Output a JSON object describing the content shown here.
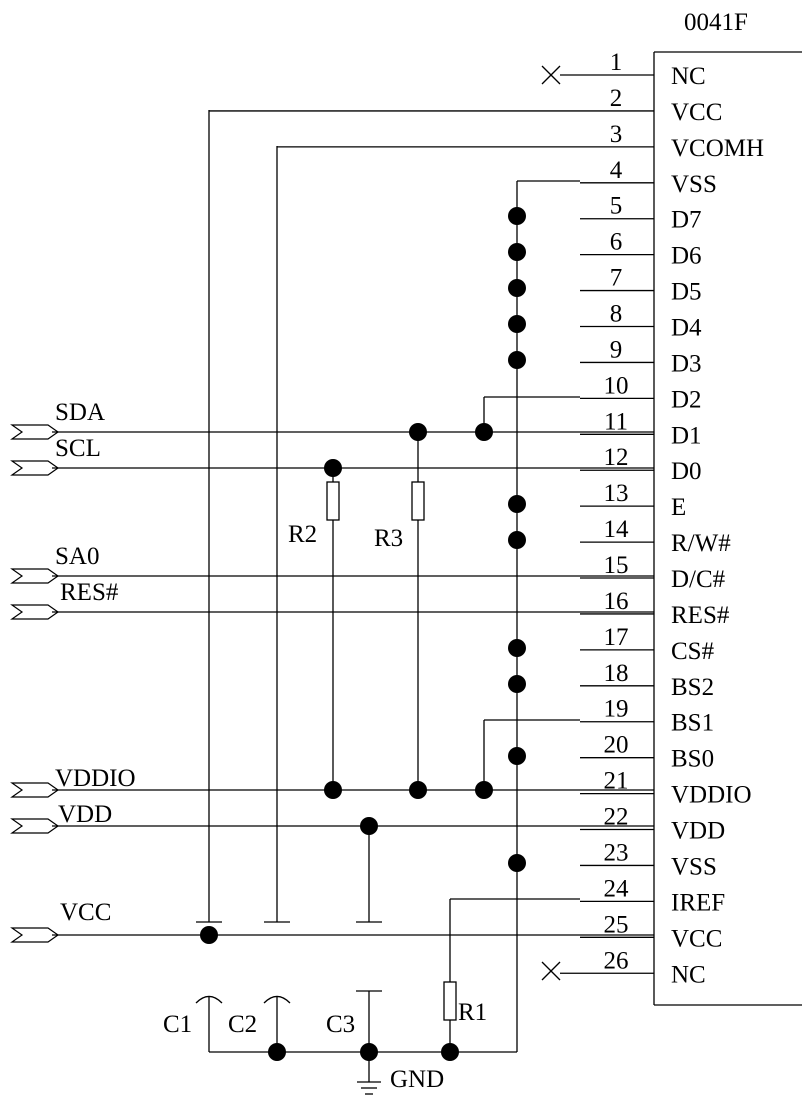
{
  "part_label": "0041F",
  "pins": [
    {
      "num": "1",
      "name": "NC"
    },
    {
      "num": "2",
      "name": "VCC"
    },
    {
      "num": "3",
      "name": "VCOMH"
    },
    {
      "num": "4",
      "name": "VSS"
    },
    {
      "num": "5",
      "name": "D7"
    },
    {
      "num": "6",
      "name": "D6"
    },
    {
      "num": "7",
      "name": "D5"
    },
    {
      "num": "8",
      "name": "D4"
    },
    {
      "num": "9",
      "name": "D3"
    },
    {
      "num": "10",
      "name": "D2"
    },
    {
      "num": "11",
      "name": "D1"
    },
    {
      "num": "12",
      "name": "D0"
    },
    {
      "num": "13",
      "name": "E"
    },
    {
      "num": "14",
      "name": "R/W#"
    },
    {
      "num": "15",
      "name": "D/C#"
    },
    {
      "num": "16",
      "name": "RES#"
    },
    {
      "num": "17",
      "name": "CS#"
    },
    {
      "num": "18",
      "name": "BS2"
    },
    {
      "num": "19",
      "name": "BS1"
    },
    {
      "num": "20",
      "name": "BS0"
    },
    {
      "num": "21",
      "name": "VDDIO"
    },
    {
      "num": "22",
      "name": "VDD"
    },
    {
      "num": "23",
      "name": "VSS"
    },
    {
      "num": "24",
      "name": "IREF"
    },
    {
      "num": "25",
      "name": "VCC"
    },
    {
      "num": "26",
      "name": "NC"
    }
  ],
  "signals": {
    "sda": "SDA",
    "scl": "SCL",
    "sa0": "SA0",
    "res": "RES#",
    "vddio": "VDDIO",
    "vdd": "VDD",
    "vcc": "VCC"
  },
  "components": {
    "r1": "R1",
    "r2": "R2",
    "r3": "R3",
    "c1": "C1",
    "c2": "C2",
    "c3": "C3",
    "gnd": "GND"
  }
}
